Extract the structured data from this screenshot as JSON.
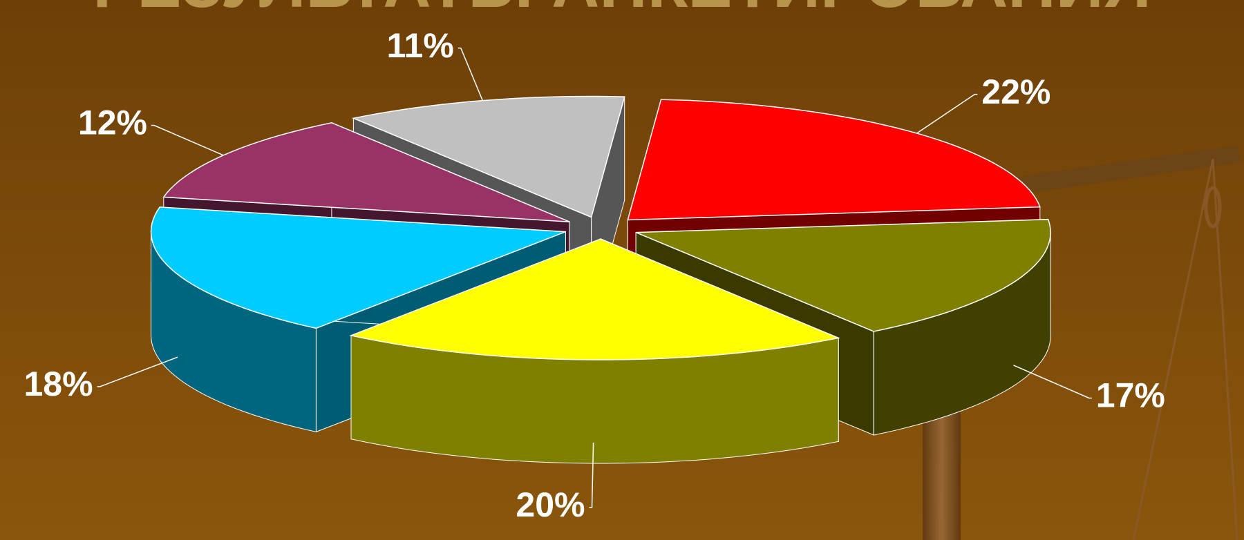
{
  "chart_data": {
    "type": "pie",
    "title": "РЕЗУЛЬТАТЫ АНКЕТИРОВАНИЯ",
    "values": [
      11,
      22,
      17,
      20,
      18,
      12
    ],
    "value_labels": [
      "11%",
      "22%",
      "17%",
      "20%",
      "18%",
      "12%"
    ],
    "colors": [
      "#c0c0c0",
      "#ff0000",
      "#808000",
      "#ffff00",
      "#00ccff",
      "#993366"
    ]
  }
}
